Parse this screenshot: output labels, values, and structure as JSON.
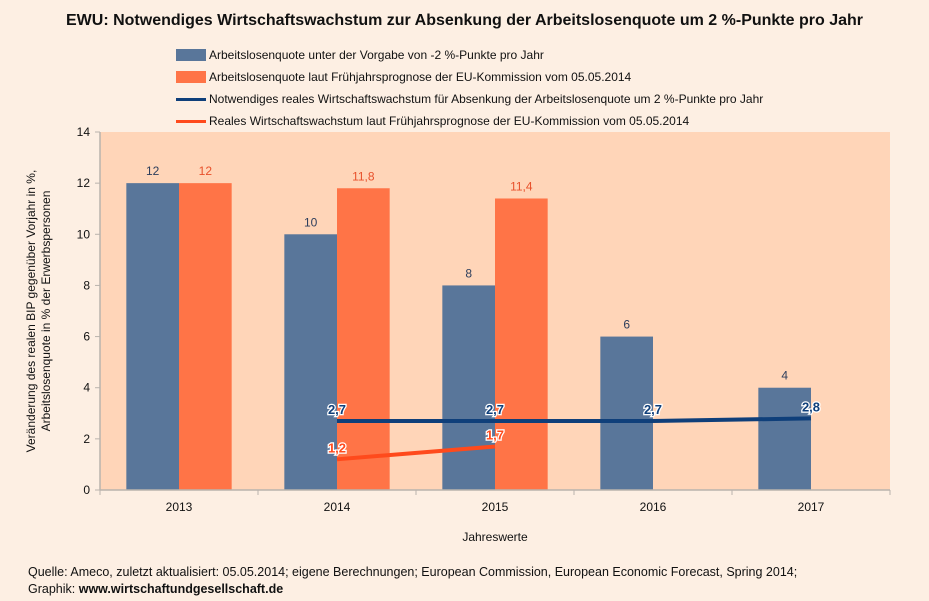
{
  "chart_data": {
    "type": "bar",
    "title": "EWU: Notwendiges Wirtschaftswachstum zur Absenkung der Arbeitslosenquote um 2 %-Punkte pro Jahr",
    "xlabel": "Jahreswerte",
    "ylabel_line1": "Veränderung des realen BIP gegenüber Vorjahr in %,",
    "ylabel_line2": "Arbeitslosenquote in % der Erwerbspersonen",
    "ylim": [
      0,
      14
    ],
    "yticks": [
      0,
      2,
      4,
      6,
      8,
      10,
      12,
      14
    ],
    "categories": [
      "2013",
      "2014",
      "2015",
      "2016",
      "2017"
    ],
    "grid": false,
    "legend_position": "top",
    "series": [
      {
        "name": "Arbeitslosenquote unter der Vorgabe von -2 %-Punkte pro Jahr",
        "kind": "bar",
        "color": "#59769a",
        "label_color": "#2d3e5c",
        "values": [
          12,
          10,
          8,
          6,
          4
        ],
        "labels": [
          "12",
          "10",
          "8",
          "6",
          "4"
        ]
      },
      {
        "name": "Arbeitslosenquote laut Frühjahrsprognose der EU-Kommission vom 05.05.2014",
        "kind": "bar",
        "color": "#ff7447",
        "label_color": "#e8502a",
        "values": [
          12,
          11.8,
          11.4,
          null,
          null
        ],
        "labels": [
          "12",
          "11,8",
          "11,4",
          null,
          null
        ]
      },
      {
        "name": "Notwendiges reales Wirtschaftswachstum für Absenkung der Arbeitslosenquote um 2 %-Punkte pro Jahr",
        "kind": "line",
        "color": "#0f3f7a",
        "label_color": "#0f3f7a",
        "values": [
          null,
          2.7,
          2.7,
          2.7,
          2.8
        ],
        "labels": [
          null,
          "2,7",
          "2,7",
          "2,7",
          "2,8"
        ]
      },
      {
        "name": "Reales Wirtschaftswachstum laut Frühjahrsprognose der EU-Kommission vom 05.05.2014",
        "kind": "line",
        "color": "#ff4a1c",
        "label_color": "#ff4a1c",
        "values": [
          null,
          1.2,
          1.7,
          null,
          null
        ],
        "labels": [
          null,
          "1,2",
          "1,7",
          null,
          null
        ]
      }
    ],
    "colors": {
      "plot_bg": "#ffd5b8",
      "page_bg": "#fdefe3",
      "axis": "#b9b3ad"
    }
  },
  "footer": {
    "source": "Quelle: Ameco, zuletzt aktualisiert: 05.05.2014; eigene Berechnungen; European Commission, European Economic Forecast, Spring 2014;",
    "graphic_label": "Graphik: ",
    "graphic_url": "www.wirtschaftundgesellschaft.de"
  }
}
